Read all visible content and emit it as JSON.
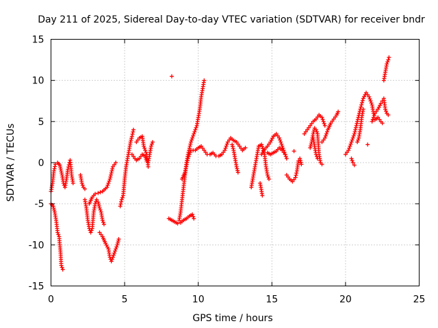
{
  "chart_data": {
    "type": "scatter",
    "title": "Day 211 of 2025, Sidereal Day-to-day VTEC variation (SDTVAR) for receiver bndr",
    "xlabel": "GPS time / hours",
    "ylabel": "SDTVAR / TECUs",
    "xlim": [
      0,
      25
    ],
    "ylim": [
      -15,
      15
    ],
    "xticks": [
      "0",
      "5",
      "10",
      "15",
      "20",
      "25"
    ],
    "yticks": [
      "-15",
      "-10",
      "-5",
      "0",
      "5",
      "10",
      "15"
    ],
    "grid": true,
    "marker": "+",
    "color": "#ff0000",
    "series": [
      {
        "name": "SDTVAR",
        "segments": [
          [
            [
              0.0,
              -3.5
            ],
            [
              0.1,
              -2.5
            ],
            [
              0.2,
              -1.0
            ],
            [
              0.3,
              -0.2
            ],
            [
              0.45,
              0.0
            ],
            [
              0.6,
              -0.3
            ],
            [
              0.75,
              -1.5
            ],
            [
              0.85,
              -2.5
            ],
            [
              0.95,
              -3.0
            ],
            [
              1.05,
              -2.0
            ],
            [
              1.15,
              -0.8
            ],
            [
              1.25,
              0.0
            ],
            [
              1.3,
              0.3
            ],
            [
              1.35,
              -0.5
            ],
            [
              1.4,
              -1.5
            ],
            [
              1.5,
              -2.5
            ]
          ],
          [
            [
              0.0,
              -5.0
            ],
            [
              0.15,
              -5.3
            ],
            [
              0.25,
              -6.0
            ],
            [
              0.35,
              -7.0
            ],
            [
              0.45,
              -8.5
            ],
            [
              0.55,
              -9.0
            ],
            [
              0.65,
              -11.0
            ],
            [
              0.7,
              -12.5
            ],
            [
              0.8,
              -13.0
            ]
          ],
          [
            [
              2.0,
              -1.5
            ],
            [
              2.1,
              -2.5
            ],
            [
              2.2,
              -3.0
            ],
            [
              2.3,
              -3.2
            ]
          ],
          [
            [
              2.3,
              -4.5
            ],
            [
              2.4,
              -5.5
            ],
            [
              2.5,
              -7.0
            ],
            [
              2.6,
              -8.0
            ],
            [
              2.7,
              -8.5
            ],
            [
              2.8,
              -8.0
            ],
            [
              2.9,
              -6.0
            ],
            [
              3.0,
              -5.0
            ],
            [
              3.1,
              -4.5
            ],
            [
              3.2,
              -4.8
            ],
            [
              3.3,
              -5.5
            ],
            [
              3.4,
              -6.0
            ],
            [
              3.5,
              -7.0
            ],
            [
              3.6,
              -7.5
            ]
          ],
          [
            [
              2.6,
              -5.0
            ],
            [
              2.8,
              -4.2
            ],
            [
              3.0,
              -3.8
            ],
            [
              3.2,
              -3.7
            ],
            [
              3.5,
              -3.5
            ],
            [
              3.8,
              -3.0
            ],
            [
              4.0,
              -2.0
            ],
            [
              4.2,
              -0.5
            ],
            [
              4.4,
              0.0
            ]
          ],
          [
            [
              3.3,
              -8.5
            ],
            [
              3.5,
              -9.0
            ],
            [
              3.7,
              -9.8
            ],
            [
              3.9,
              -10.5
            ],
            [
              4.0,
              -11.5
            ],
            [
              4.1,
              -12.0
            ],
            [
              4.3,
              -11.0
            ],
            [
              4.5,
              -10.0
            ],
            [
              4.6,
              -9.3
            ]
          ],
          [
            [
              4.7,
              -5.3
            ],
            [
              4.8,
              -4.5
            ],
            [
              4.9,
              -4.0
            ],
            [
              5.0,
              -2.0
            ],
            [
              5.1,
              -0.5
            ],
            [
              5.2,
              0.5
            ],
            [
              5.3,
              1.5
            ],
            [
              5.4,
              2.5
            ],
            [
              5.5,
              3.2
            ],
            [
              5.6,
              4.0
            ]
          ],
          [
            [
              5.5,
              1.0
            ],
            [
              5.7,
              0.5
            ],
            [
              5.8,
              0.3
            ],
            [
              6.0,
              0.5
            ],
            [
              6.2,
              1.0
            ],
            [
              6.4,
              0.8
            ],
            [
              6.5,
              0.2
            ],
            [
              6.6,
              0.0
            ],
            [
              6.7,
              1.0
            ],
            [
              6.8,
              2.0
            ],
            [
              6.9,
              2.5
            ]
          ],
          [
            [
              5.8,
              2.5
            ],
            [
              6.0,
              3.0
            ],
            [
              6.2,
              3.2
            ],
            [
              6.3,
              2.0
            ],
            [
              6.5,
              1.0
            ],
            [
              6.6,
              -0.5
            ]
          ],
          [
            [
              8.2,
              10.5
            ]
          ],
          [
            [
              8.0,
              -6.8
            ],
            [
              8.2,
              -7.0
            ],
            [
              8.4,
              -7.2
            ],
            [
              8.6,
              -7.4
            ],
            [
              8.8,
              -7.3
            ],
            [
              9.0,
              -7.0
            ],
            [
              9.2,
              -6.8
            ],
            [
              9.4,
              -6.5
            ],
            [
              9.6,
              -6.3
            ],
            [
              9.7,
              -6.8
            ]
          ],
          [
            [
              8.7,
              -7.0
            ],
            [
              8.8,
              -6.0
            ],
            [
              8.9,
              -4.5
            ],
            [
              9.0,
              -3.0
            ],
            [
              9.1,
              -1.5
            ],
            [
              9.2,
              0.0
            ],
            [
              9.3,
              1.0
            ],
            [
              9.5,
              2.5
            ],
            [
              9.7,
              3.5
            ],
            [
              9.9,
              4.5
            ],
            [
              10.0,
              5.5
            ],
            [
              10.1,
              6.5
            ],
            [
              10.2,
              8.0
            ],
            [
              10.3,
              9.0
            ],
            [
              10.4,
              10.0
            ]
          ],
          [
            [
              8.9,
              -2.0
            ],
            [
              9.1,
              -1.2
            ],
            [
              9.3,
              0.5
            ],
            [
              9.5,
              1.5
            ],
            [
              9.8,
              1.5
            ],
            [
              10.0,
              1.8
            ],
            [
              10.2,
              2.0
            ],
            [
              10.4,
              1.5
            ],
            [
              10.6,
              1.0
            ],
            [
              10.8,
              1.0
            ],
            [
              11.0,
              1.2
            ],
            [
              11.1,
              1.0
            ],
            [
              11.2,
              0.8
            ]
          ],
          [
            [
              11.4,
              0.8
            ],
            [
              11.6,
              1.0
            ],
            [
              11.8,
              1.5
            ],
            [
              12.0,
              2.5
            ],
            [
              12.2,
              3.0
            ],
            [
              12.4,
              2.7
            ],
            [
              12.6,
              2.5
            ],
            [
              12.8,
              2.0
            ],
            [
              13.0,
              1.5
            ],
            [
              13.2,
              1.8
            ]
          ],
          [
            [
              12.3,
              2.2
            ],
            [
              12.4,
              1.5
            ],
            [
              12.5,
              0.5
            ],
            [
              12.6,
              -0.5
            ],
            [
              12.7,
              -1.2
            ]
          ],
          [
            [
              13.6,
              -3.0
            ],
            [
              13.7,
              -2.0
            ],
            [
              13.8,
              -1.0
            ],
            [
              13.9,
              0.0
            ],
            [
              14.0,
              1.0
            ],
            [
              14.1,
              2.0
            ],
            [
              14.3,
              2.2
            ],
            [
              14.5,
              1.0
            ],
            [
              14.6,
              -0.5
            ],
            [
              14.7,
              -1.5
            ],
            [
              14.8,
              -2.0
            ]
          ],
          [
            [
              14.2,
              -2.5
            ],
            [
              14.3,
              -3.5
            ],
            [
              14.35,
              -4.0
            ]
          ],
          [
            [
              14.3,
              1.0
            ],
            [
              14.5,
              1.6
            ],
            [
              14.7,
              2.0
            ],
            [
              14.9,
              2.5
            ],
            [
              15.1,
              3.2
            ],
            [
              15.3,
              3.5
            ],
            [
              15.5,
              3.0
            ],
            [
              15.7,
              2.0
            ],
            [
              15.9,
              1.0
            ]
          ],
          [
            [
              14.7,
              1.2
            ],
            [
              14.9,
              1.0
            ],
            [
              15.1,
              1.2
            ],
            [
              15.3,
              1.4
            ],
            [
              15.5,
              1.8
            ],
            [
              15.7,
              1.5
            ],
            [
              15.9,
              1.0
            ],
            [
              16.0,
              0.5
            ]
          ],
          [
            [
              16.0,
              -1.5
            ],
            [
              16.2,
              -2.0
            ],
            [
              16.4,
              -2.3
            ],
            [
              16.6,
              -1.8
            ],
            [
              16.7,
              -1.0
            ],
            [
              16.8,
              0.2
            ],
            [
              16.9,
              0.5
            ],
            [
              17.0,
              -0.2
            ]
          ],
          [
            [
              16.5,
              1.4
            ]
          ],
          [
            [
              17.2,
              3.5
            ],
            [
              17.4,
              4.0
            ],
            [
              17.6,
              4.5
            ],
            [
              17.8,
              5.0
            ],
            [
              18.0,
              5.3
            ],
            [
              18.2,
              5.8
            ],
            [
              18.4,
              5.5
            ],
            [
              18.5,
              5.0
            ],
            [
              18.6,
              4.5
            ]
          ],
          [
            [
              17.6,
              1.8
            ],
            [
              17.7,
              2.5
            ],
            [
              17.8,
              3.5
            ],
            [
              17.9,
              4.2
            ],
            [
              18.0,
              4.0
            ],
            [
              18.1,
              3.5
            ],
            [
              18.2,
              1.0
            ],
            [
              18.3,
              0.0
            ],
            [
              18.4,
              -0.2
            ]
          ],
          [
            [
              17.8,
              3.0
            ],
            [
              17.9,
              2.0
            ],
            [
              18.0,
              1.0
            ],
            [
              18.1,
              0.5
            ]
          ],
          [
            [
              18.4,
              2.5
            ],
            [
              18.6,
              3.0
            ],
            [
              18.8,
              4.0
            ],
            [
              19.0,
              4.8
            ],
            [
              19.2,
              5.3
            ],
            [
              19.4,
              5.8
            ],
            [
              19.5,
              6.2
            ]
          ],
          [
            [
              20.0,
              1.0
            ],
            [
              20.2,
              1.5
            ],
            [
              20.4,
              2.5
            ],
            [
              20.6,
              3.5
            ],
            [
              20.8,
              5.0
            ],
            [
              21.0,
              6.5
            ],
            [
              21.2,
              7.8
            ],
            [
              21.4,
              8.5
            ],
            [
              21.6,
              8.0
            ],
            [
              21.8,
              7.0
            ],
            [
              21.9,
              6.0
            ]
          ],
          [
            [
              20.4,
              0.5
            ],
            [
              20.5,
              0.0
            ],
            [
              20.6,
              -0.3
            ]
          ],
          [
            [
              20.8,
              2.5
            ],
            [
              20.9,
              3.0
            ],
            [
              21.0,
              4.0
            ],
            [
              21.1,
              5.5
            ],
            [
              21.2,
              6.5
            ]
          ],
          [
            [
              21.5,
              2.2
            ]
          ],
          [
            [
              21.8,
              5.0
            ],
            [
              22.0,
              6.0
            ],
            [
              22.2,
              6.5
            ],
            [
              22.4,
              7.2
            ],
            [
              22.5,
              7.5
            ],
            [
              22.6,
              7.8
            ],
            [
              22.7,
              6.5
            ],
            [
              22.8,
              6.0
            ],
            [
              22.9,
              5.8
            ]
          ],
          [
            [
              22.0,
              5.2
            ],
            [
              22.2,
              5.5
            ],
            [
              22.4,
              5.0
            ],
            [
              22.5,
              4.8
            ]
          ],
          [
            [
              22.6,
              10.0
            ],
            [
              22.7,
              11.0
            ],
            [
              22.8,
              12.0
            ],
            [
              22.9,
              12.5
            ],
            [
              22.95,
              12.8
            ]
          ]
        ]
      }
    ]
  }
}
